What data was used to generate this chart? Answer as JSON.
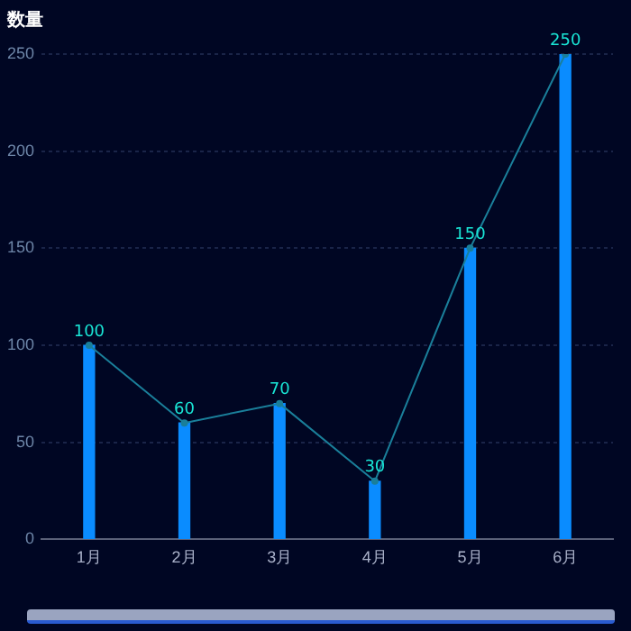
{
  "chart_data": {
    "type": "bar",
    "ylabel": "数量",
    "categories": [
      "1月",
      "2月",
      "3月",
      "4月",
      "5月",
      "6月"
    ],
    "series": [
      {
        "color": "#0a8cff",
        "values": [
          100,
          60,
          70,
          30,
          150,
          250
        ],
        "data_labels": true
      },
      {
        "type": "line",
        "color": "#1a7f9a",
        "values": [
          100,
          60,
          70,
          30,
          150,
          250
        ],
        "marker": "circle"
      }
    ],
    "ylim": [
      0,
      250
    ],
    "yticks": [
      0,
      50,
      100,
      150,
      200,
      250
    ],
    "grid": "y",
    "legend": false
  }
}
